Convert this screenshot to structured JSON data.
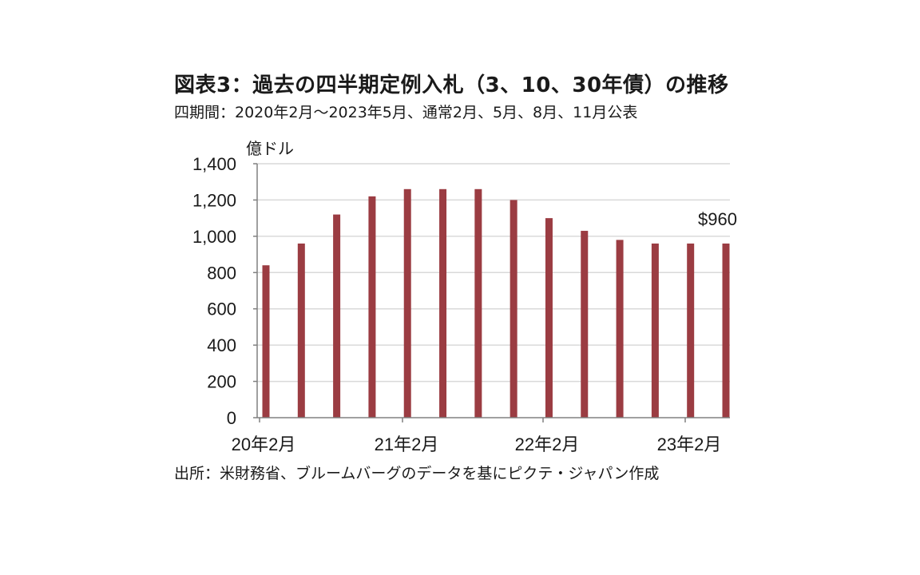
{
  "title": "図表3：過去の四半期定例入札（3、10、30年債）の推移",
  "subtitle": "四期間：2020年2月～2023年5月、通常2月、5月、8月、11月公表",
  "source": "出所：米財務省、ブルームバーグのデータを基にピクテ・ジャパン作成",
  "chart_data": {
    "type": "bar",
    "ylabel": "億ドル",
    "ylim": [
      0,
      1400
    ],
    "yticks": [
      0,
      200,
      400,
      600,
      800,
      1000,
      1200,
      1400
    ],
    "yticks_labels": [
      "0",
      "200",
      "400",
      "600",
      "800",
      "1,000",
      "1,200",
      "1,400"
    ],
    "grid": true,
    "bar_color": "#9b3c42",
    "x_tick_labels": [
      "20年2月",
      "21年2月",
      "22年2月",
      "23年2月"
    ],
    "categories": [
      "2020-02",
      "2020-05",
      "2020-08",
      "2020-11",
      "2021-02",
      "2021-05",
      "2021-08",
      "2021-11",
      "2022-02",
      "2022-05",
      "2022-08",
      "2022-11",
      "2023-02",
      "2023-05"
    ],
    "values": [
      840,
      960,
      1120,
      1220,
      1260,
      1260,
      1260,
      1200,
      1100,
      1030,
      980,
      960,
      960,
      960
    ],
    "annotation": "$960"
  }
}
